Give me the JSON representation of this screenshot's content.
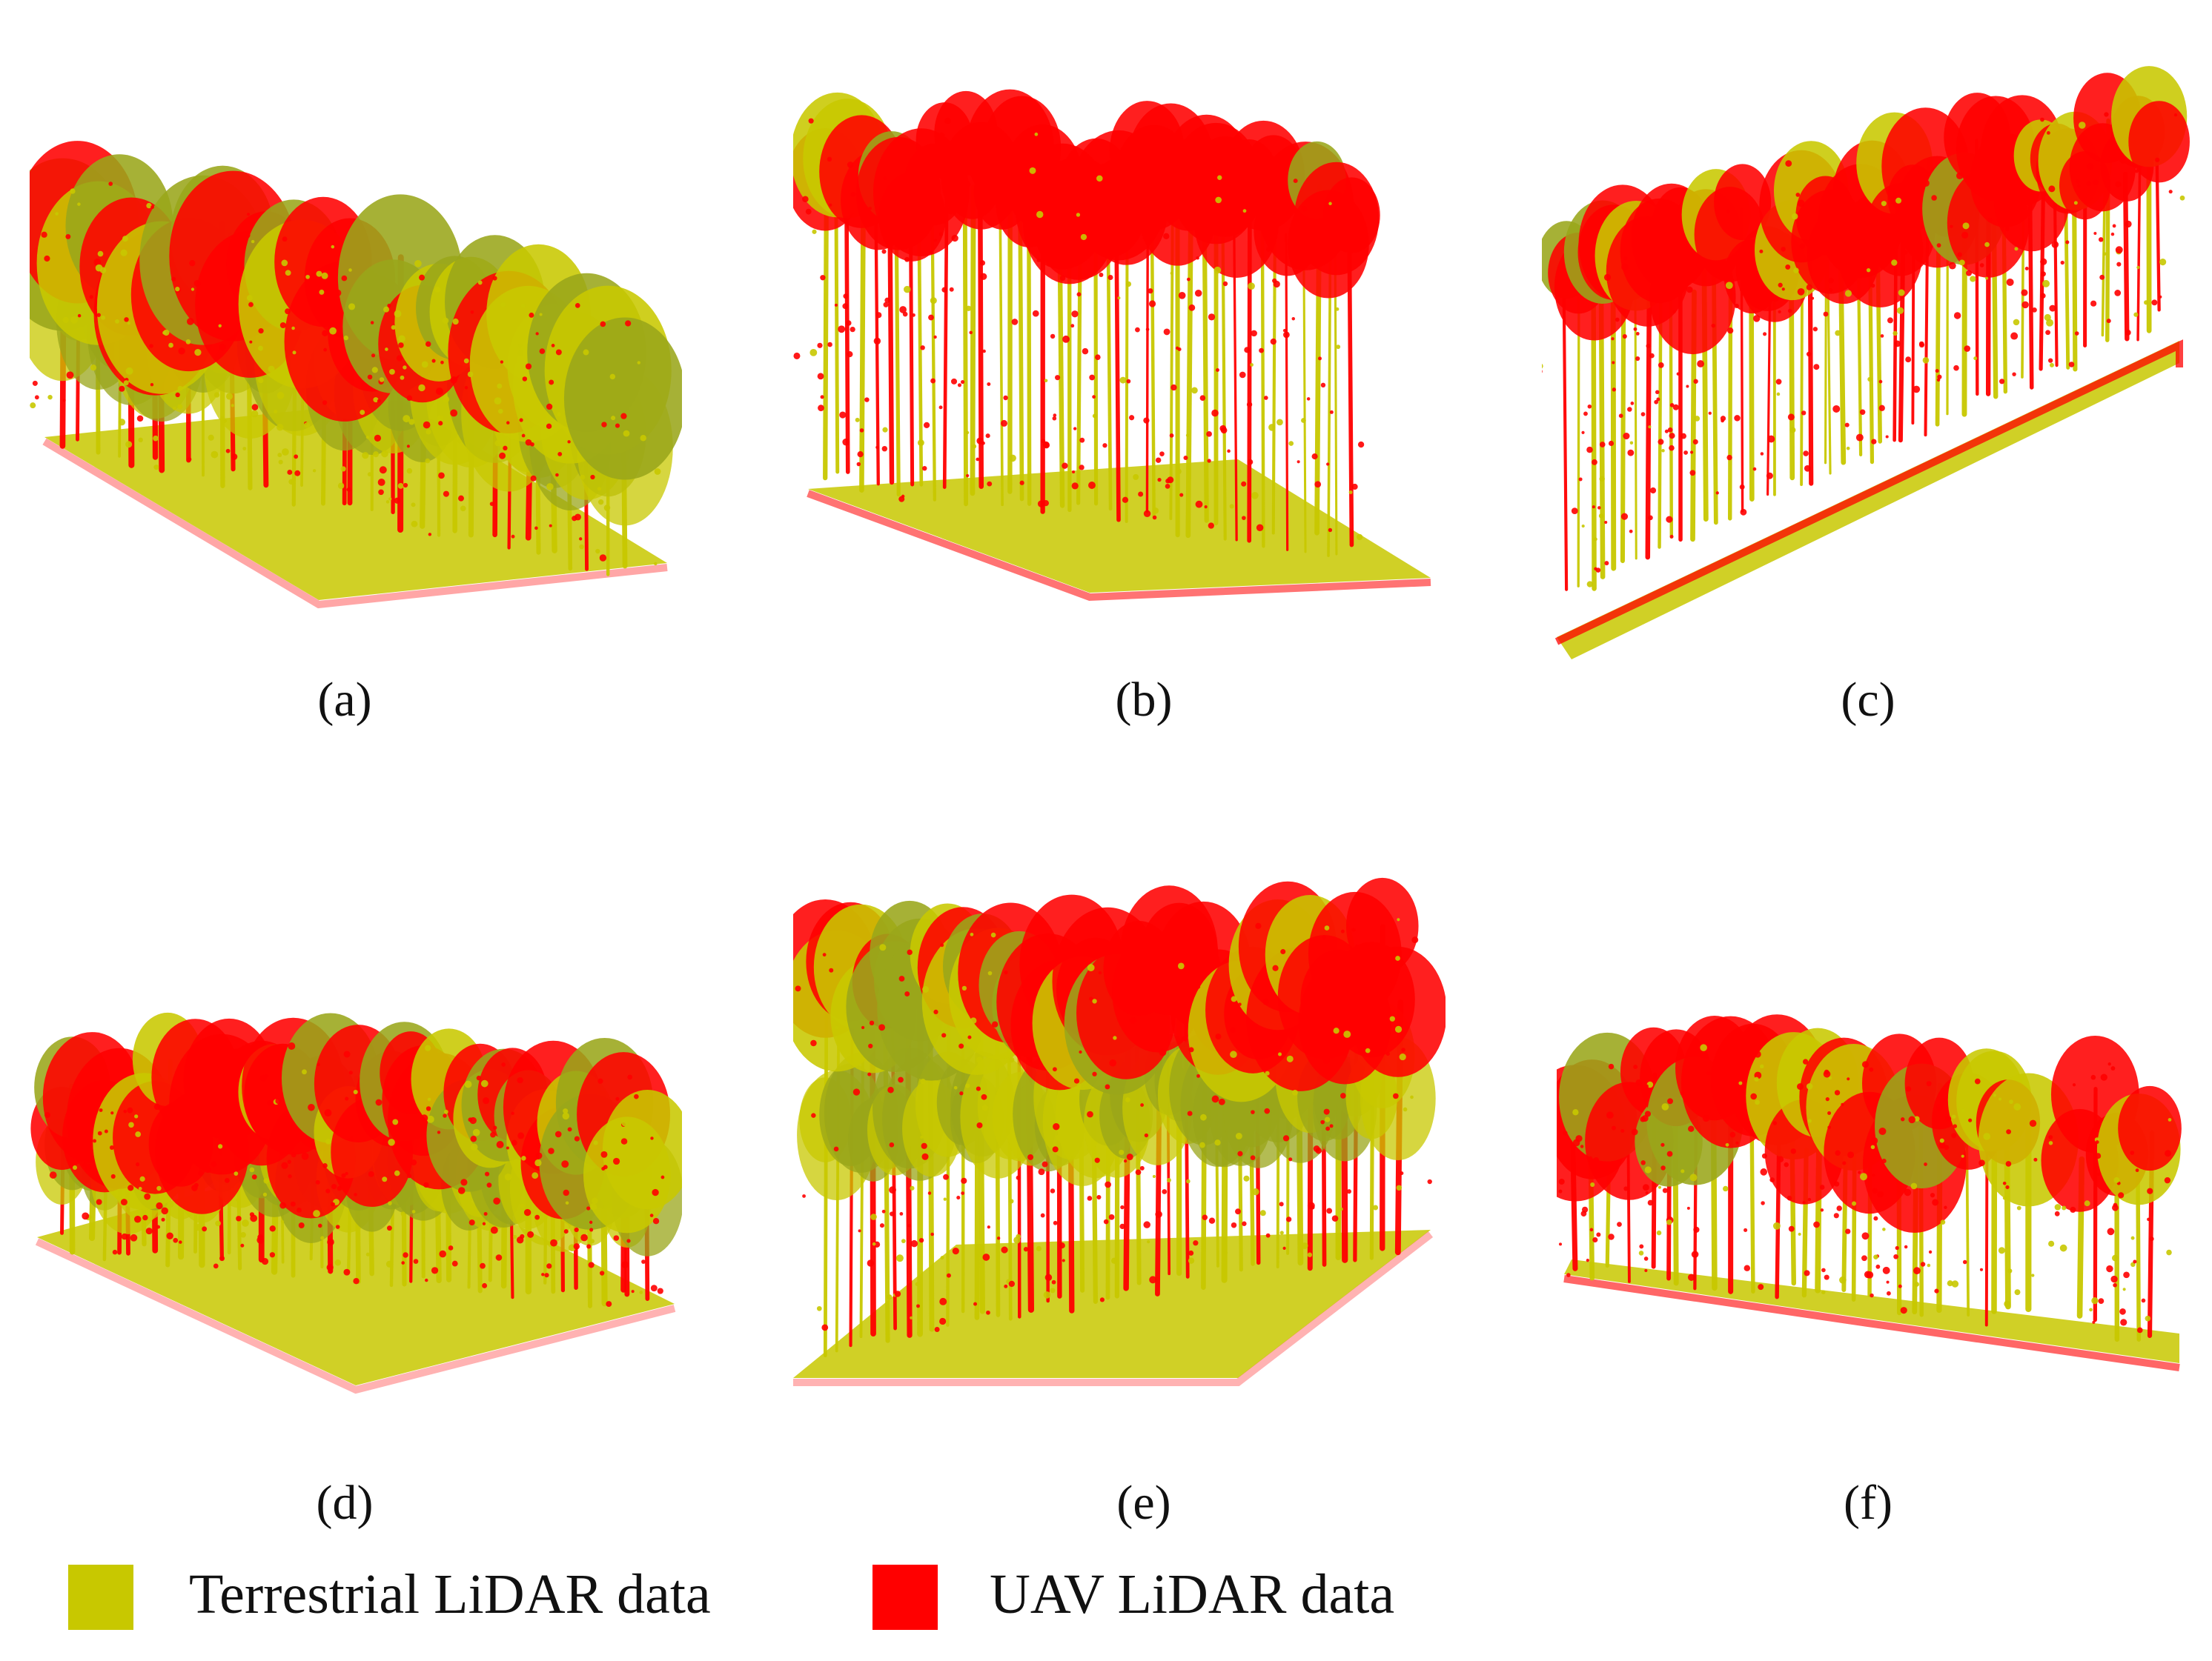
{
  "panels": [
    {
      "id": "a",
      "caption": "(a)"
    },
    {
      "id": "b",
      "caption": "(b)"
    },
    {
      "id": "c",
      "caption": "(c)"
    },
    {
      "id": "d",
      "caption": "(d)"
    },
    {
      "id": "e",
      "caption": "(e)"
    },
    {
      "id": "f",
      "caption": "(f)"
    }
  ],
  "legend": {
    "terrestrial": {
      "label": "Terrestrial LiDAR data",
      "color": "#c8c800"
    },
    "uav": {
      "label": "UAV LiDAR data",
      "color": "#ff0000"
    }
  }
}
